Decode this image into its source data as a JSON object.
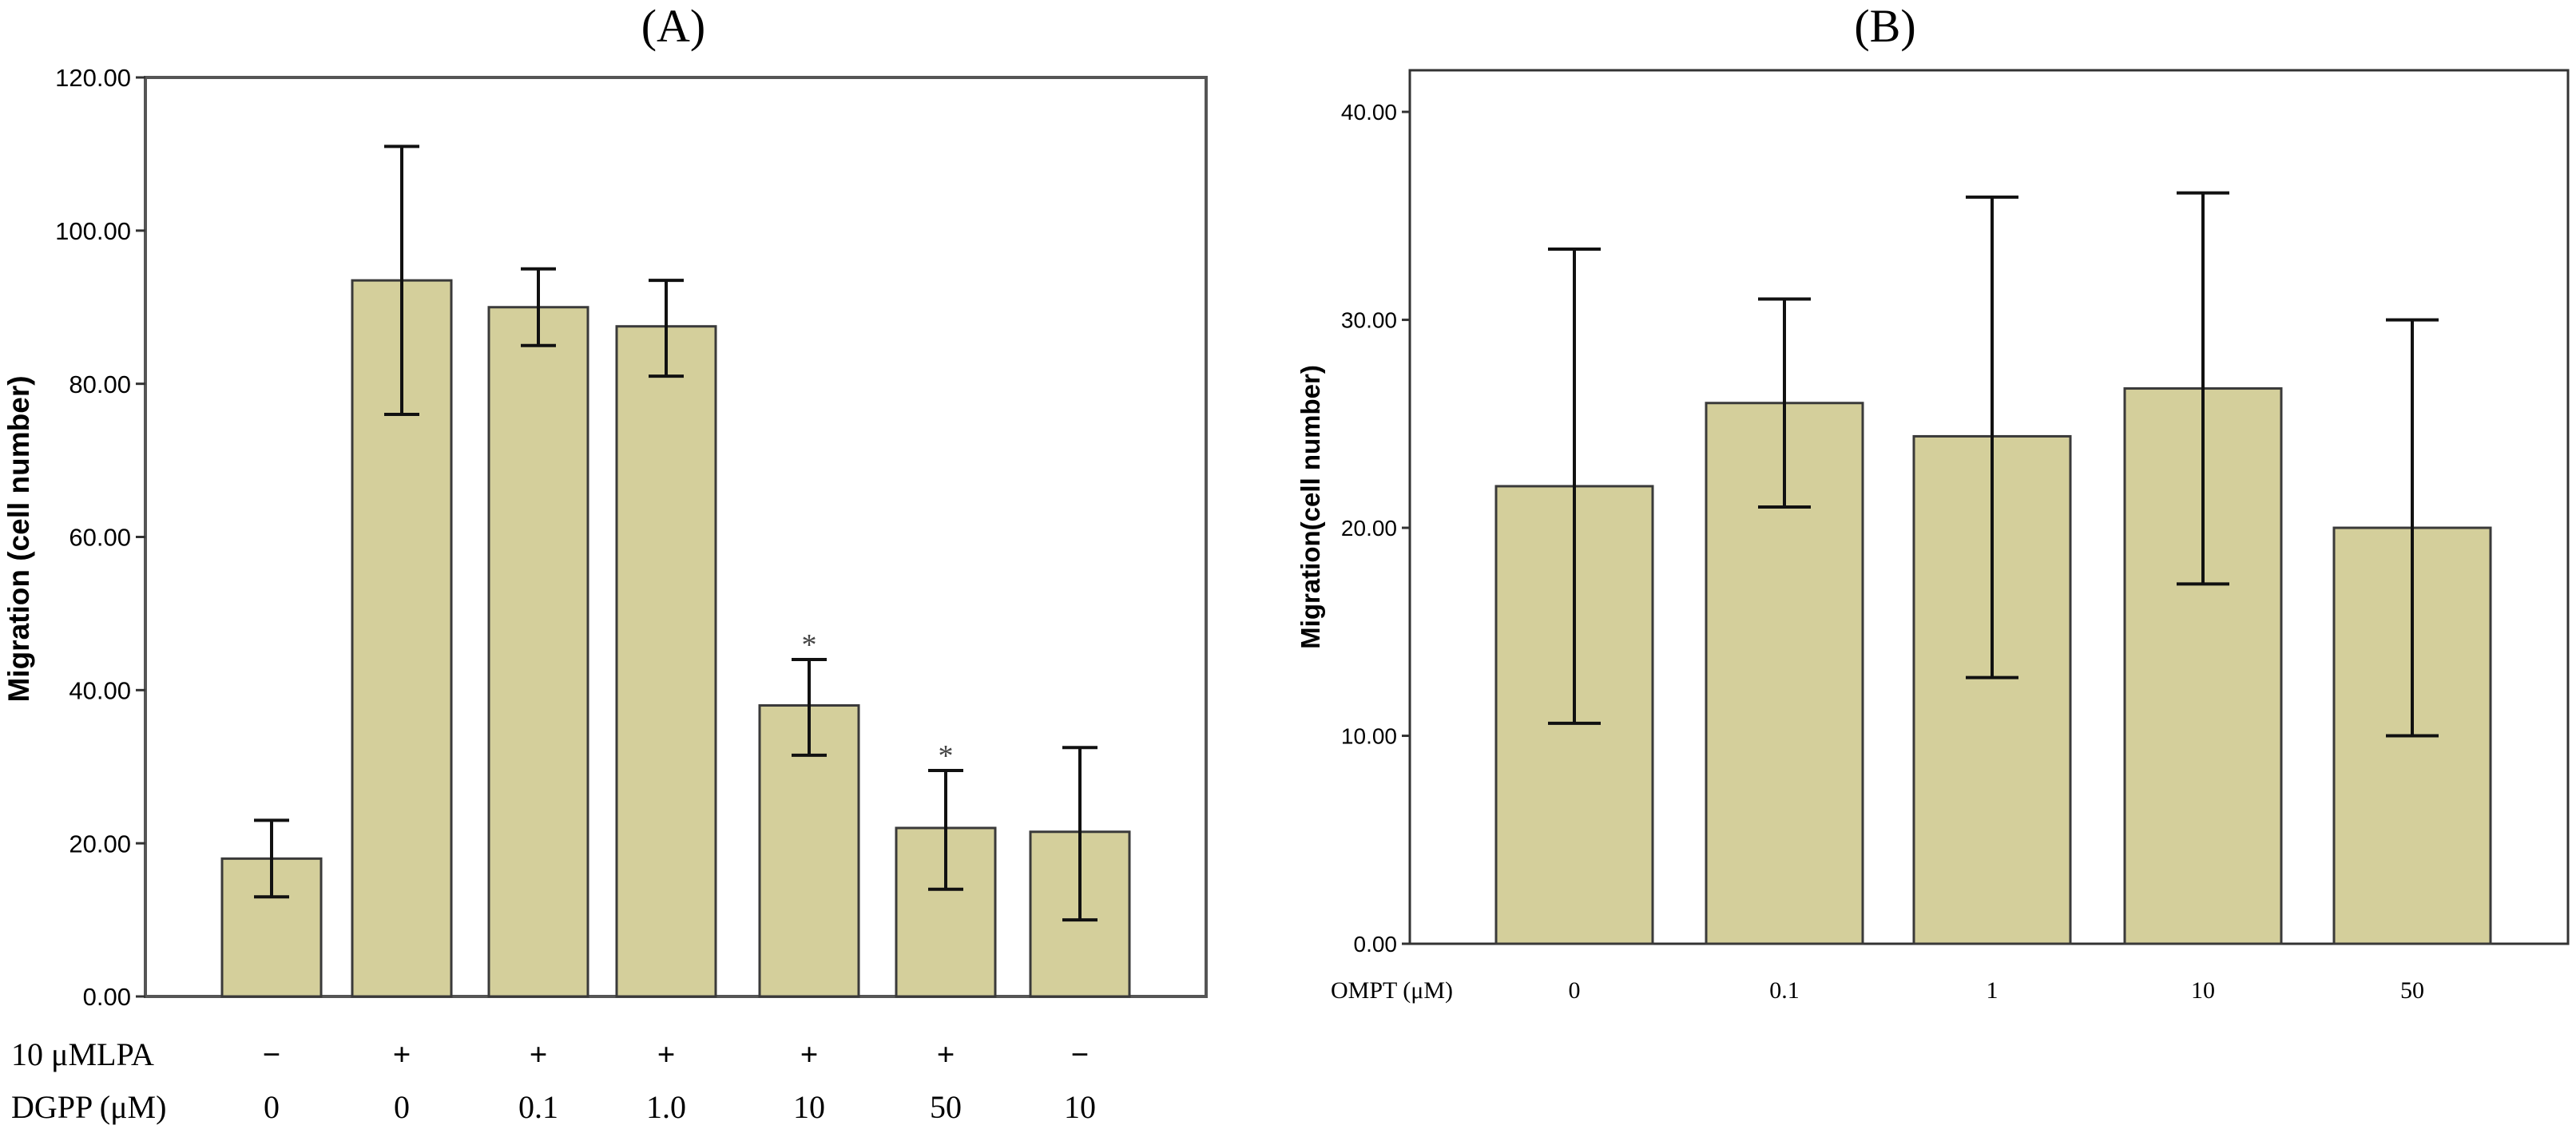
{
  "colors": {
    "bar_fill": "#d4cf9b",
    "bar_stroke": "#3a3a3a",
    "axis": "#333333",
    "frame": "#555555",
    "text": "#000000"
  },
  "chart_data": [
    {
      "type": "bar",
      "title": "(A)",
      "ylabel": "Migration (cell number)",
      "ylim": [
        0,
        120
      ],
      "yticks": [
        0,
        20,
        40,
        60,
        80,
        100,
        120
      ],
      "ytick_labels": [
        "0.00",
        "20.00",
        "40.00",
        "60.00",
        "80.00",
        "100.00",
        "120.00"
      ],
      "values": [
        18,
        93.5,
        90,
        87.5,
        38,
        22,
        21.5
      ],
      "error_low": [
        13,
        76,
        85,
        81,
        31.5,
        14,
        10
      ],
      "error_high": [
        23,
        111,
        95,
        93.5,
        44,
        29.5,
        32.5
      ],
      "annotations": [
        "",
        "",
        "",
        "",
        "*",
        "*",
        ""
      ],
      "rows": [
        {
          "label": "10 μMLPA",
          "values": [
            "−",
            "+",
            "+",
            "+",
            "+",
            "+",
            "−"
          ]
        },
        {
          "label": "DGPP (μM)",
          "values": [
            "0",
            "0",
            "0.1",
            "1.0",
            "10",
            "50",
            "10"
          ]
        }
      ]
    },
    {
      "type": "bar",
      "title": "(B)",
      "ylabel": "Migration(cell number)",
      "ylim": [
        0,
        42
      ],
      "yticks": [
        0,
        10,
        20,
        30,
        40
      ],
      "ytick_labels": [
        "0.00",
        "10.00",
        "20.00",
        "30.00",
        "40.00"
      ],
      "xlabel": "OMPT (μM)",
      "categories": [
        "0",
        "0.1",
        "1",
        "10",
        "50"
      ],
      "values": [
        22,
        26,
        24.4,
        26.7,
        20
      ],
      "error_low": [
        10.6,
        21,
        12.8,
        17.3,
        10
      ],
      "error_high": [
        33.4,
        31,
        35.9,
        36.1,
        30
      ]
    }
  ]
}
